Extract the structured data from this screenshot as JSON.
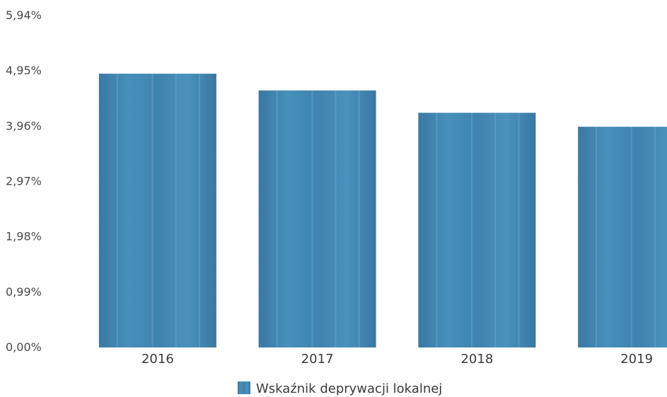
{
  "chart_data": {
    "type": "bar",
    "title": "",
    "xlabel": "",
    "ylabel": "",
    "categories": [
      "2016",
      "2017",
      "2018",
      "2019"
    ],
    "series": [
      {
        "name": "Wskaźnik deprywacji lokalnej",
        "values": [
          4.9,
          4.6,
          4.2,
          3.95
        ],
        "color": "#3f82ad"
      }
    ],
    "ylim": [
      0,
      5.94
    ],
    "yticks": [
      0,
      0.99,
      1.98,
      2.97,
      3.96,
      4.95,
      5.94
    ],
    "ytick_labels": [
      "0,00%",
      "0,99%",
      "1,98%",
      "2,97%",
      "3,96%",
      "4,95%",
      "5,94%"
    ],
    "grid": false,
    "legend": {
      "position": "bottom",
      "label": "Wskaźnik deprywacji lokalnej"
    }
  }
}
